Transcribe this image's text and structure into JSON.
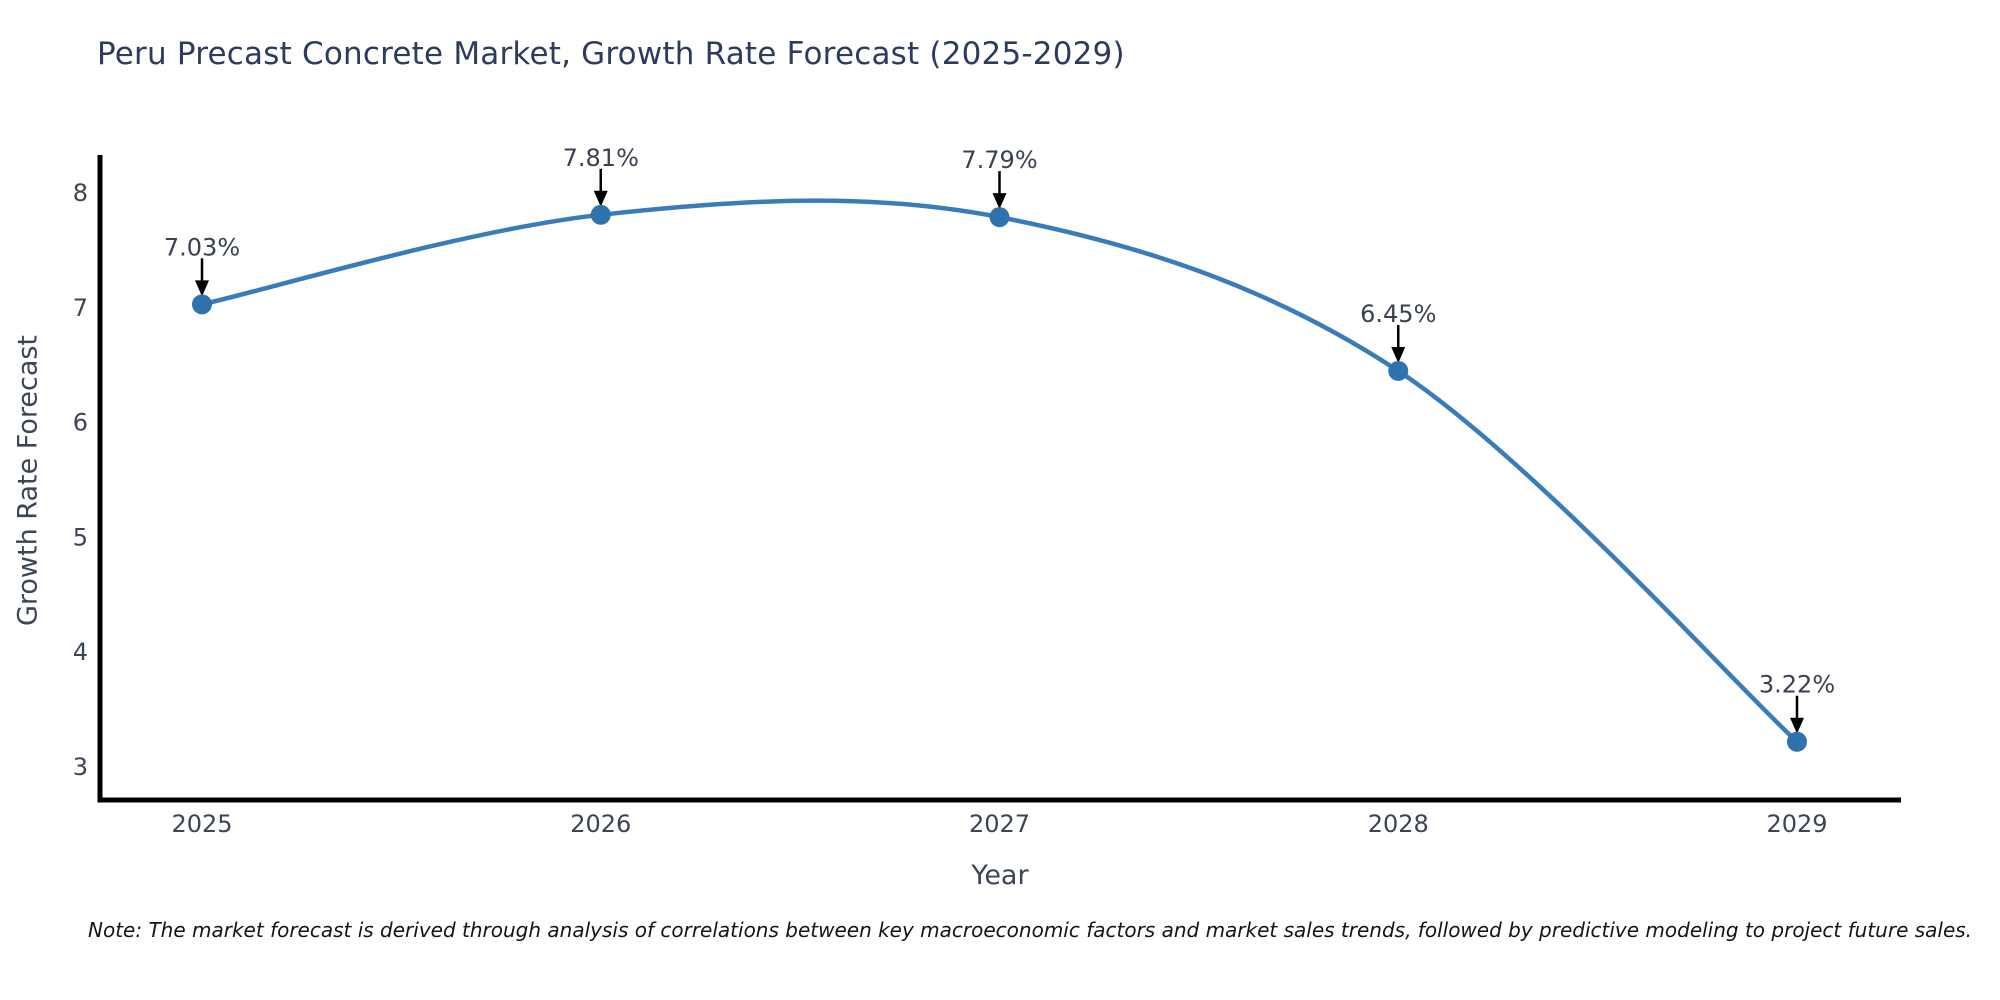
{
  "header": {
    "title": "Peru Precast Concrete Market, Growth Rate Forecast (2025-2029)"
  },
  "footnote": {
    "text": "Note: The market forecast is derived through analysis of correlations between key macroeconomic factors and market sales trends, followed by predictive modeling to project future sales."
  },
  "chart_data": {
    "type": "line",
    "title": "Peru Precast Concrete Market, Growth Rate Forecast (2025-2029)",
    "xlabel": "Year",
    "ylabel": "Growth Rate Forecast",
    "categories": [
      "2025",
      "2026",
      "2027",
      "2028",
      "2029"
    ],
    "series": [
      {
        "name": "Growth Rate Forecast",
        "values": [
          7.03,
          7.81,
          7.79,
          6.45,
          3.22
        ]
      }
    ],
    "point_labels": [
      "7.03%",
      "7.81%",
      "7.79%",
      "6.45%",
      "3.22%"
    ],
    "y_ticks": [
      3,
      4,
      5,
      6,
      7,
      8
    ],
    "ylim": [
      2.71,
      8.33
    ],
    "grid": false,
    "legend_position": "none",
    "smooth_spline": true,
    "colors": {
      "line": "#3a7cb9",
      "marker": "#2f72ae",
      "annotation_text": "#3a4150",
      "annotation_arrow": "#000000",
      "tick_label": "#3b4556",
      "axis_spine": "#000000",
      "title": "#2d3c5e"
    }
  }
}
